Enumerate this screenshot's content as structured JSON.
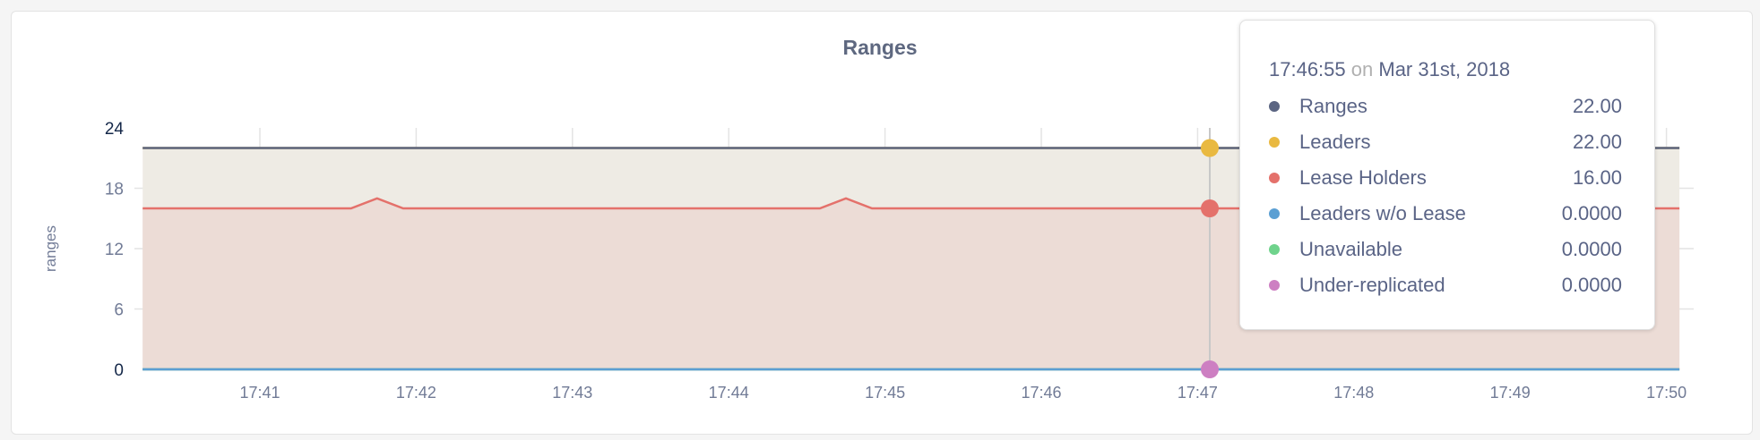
{
  "chart_data": {
    "type": "area",
    "title": "Ranges",
    "ylabel": "ranges",
    "xlabel": "",
    "ylim": [
      0,
      24
    ],
    "yticks": [
      "0",
      "6",
      "12",
      "18",
      "24"
    ],
    "xticks": [
      "17:41",
      "17:42",
      "17:43",
      "17:44",
      "17:45",
      "17:46",
      "17:47",
      "17:48",
      "17:49",
      "17:50"
    ],
    "grid": true,
    "legend": "none",
    "x": [
      "17:40:15",
      "17:40:25",
      "17:40:35",
      "17:40:45",
      "17:40:55",
      "17:41:05",
      "17:41:15",
      "17:41:25",
      "17:41:35",
      "17:41:45",
      "17:41:55",
      "17:42:05",
      "17:42:15",
      "17:42:25",
      "17:42:35",
      "17:42:45",
      "17:42:55",
      "17:43:05",
      "17:43:15",
      "17:43:25",
      "17:43:35",
      "17:43:45",
      "17:43:55",
      "17:44:05",
      "17:44:15",
      "17:44:25",
      "17:44:35",
      "17:44:45",
      "17:44:55",
      "17:45:05",
      "17:45:15",
      "17:45:25",
      "17:45:35",
      "17:45:45",
      "17:45:55",
      "17:46:05",
      "17:46:15",
      "17:46:25",
      "17:46:35",
      "17:46:45",
      "17:46:55",
      "17:47:05",
      "17:47:15",
      "17:47:25",
      "17:47:35",
      "17:47:45",
      "17:47:55",
      "17:48:05",
      "17:48:15",
      "17:48:25",
      "17:48:35",
      "17:48:45",
      "17:48:55",
      "17:49:05",
      "17:49:15",
      "17:49:25",
      "17:49:35",
      "17:49:45",
      "17:49:55",
      "17:50:05"
    ],
    "series": [
      {
        "name": "Ranges",
        "color": "#5b6582",
        "values": [
          22,
          22,
          22,
          22,
          22,
          22,
          22,
          22,
          22,
          22,
          22,
          22,
          22,
          22,
          22,
          22,
          22,
          22,
          22,
          22,
          22,
          22,
          22,
          22,
          22,
          22,
          22,
          22,
          22,
          22,
          22,
          22,
          22,
          22,
          22,
          22,
          22,
          22,
          22,
          22,
          22,
          22,
          22,
          22,
          22,
          22,
          22,
          22,
          22,
          22,
          22,
          22,
          22,
          22,
          22,
          22,
          22,
          22,
          22,
          22
        ]
      },
      {
        "name": "Leaders",
        "color": "#e9b941",
        "fill": "#eeebe4",
        "values": [
          22,
          22,
          22,
          22,
          22,
          22,
          22,
          22,
          22,
          22,
          22,
          22,
          22,
          22,
          22,
          22,
          22,
          22,
          22,
          22,
          22,
          22,
          22,
          22,
          22,
          22,
          22,
          22,
          22,
          22,
          22,
          22,
          22,
          22,
          22,
          22,
          22,
          22,
          22,
          22,
          22,
          22,
          22,
          22,
          22,
          22,
          22,
          22,
          22,
          22,
          22,
          22,
          22,
          22,
          22,
          22,
          22,
          22,
          22,
          22
        ]
      },
      {
        "name": "Lease Holders",
        "color": "#e4716b",
        "fill": "#ecdcd6",
        "values": [
          16,
          16,
          16,
          16,
          16,
          16,
          16,
          16,
          16,
          17,
          16,
          16,
          16,
          16,
          16,
          16,
          16,
          16,
          16,
          16,
          16,
          16,
          16,
          16,
          16,
          16,
          16,
          17,
          16,
          16,
          16,
          16,
          16,
          16,
          16,
          16,
          16,
          16,
          16,
          16,
          16,
          16,
          16,
          16,
          16,
          16,
          16,
          16,
          16,
          16,
          16,
          16,
          16,
          16,
          16,
          16,
          16,
          16,
          16,
          16
        ]
      },
      {
        "name": "Leaders w/o Lease",
        "color": "#5b9fd3",
        "values": [
          0,
          0,
          0,
          0,
          0,
          0,
          0,
          0,
          0,
          0,
          0,
          0,
          0,
          0,
          0,
          0,
          0,
          0,
          0,
          0,
          0,
          0,
          0,
          0,
          0,
          0,
          0,
          0,
          0,
          0,
          0,
          0,
          0,
          0,
          0,
          0,
          0,
          0,
          0,
          0,
          0,
          0,
          0,
          0,
          0,
          0,
          0,
          0,
          0,
          0,
          0,
          0,
          0,
          0,
          0,
          0,
          0,
          0,
          0,
          0
        ]
      },
      {
        "name": "Unavailable",
        "color": "#6fd38c",
        "values": [
          0,
          0,
          0,
          0,
          0,
          0,
          0,
          0,
          0,
          0,
          0,
          0,
          0,
          0,
          0,
          0,
          0,
          0,
          0,
          0,
          0,
          0,
          0,
          0,
          0,
          0,
          0,
          0,
          0,
          0,
          0,
          0,
          0,
          0,
          0,
          0,
          0,
          0,
          0,
          0,
          0,
          0,
          0,
          0,
          0,
          0,
          0,
          0,
          0,
          0,
          0,
          0,
          0,
          0,
          0,
          0,
          0,
          0,
          0,
          0
        ]
      },
      {
        "name": "Under-replicated",
        "color": "#cd7fc2",
        "values": [
          0,
          0,
          0,
          0,
          0,
          0,
          0,
          0,
          0,
          0,
          0,
          0,
          0,
          0,
          0,
          0,
          0,
          0,
          0,
          0,
          0,
          0,
          0,
          0,
          0,
          0,
          0,
          0,
          0,
          0,
          0,
          0,
          0,
          0,
          0,
          0,
          0,
          0,
          0,
          0,
          0,
          0,
          0,
          0,
          0,
          0,
          0,
          0,
          0,
          0,
          0,
          0,
          0,
          0,
          0,
          0,
          0,
          0,
          0,
          0
        ]
      }
    ]
  },
  "tooltip": {
    "time": "17:46:55",
    "on": "on",
    "date": "Mar 31st, 2018",
    "rows": [
      {
        "label": "Ranges",
        "value": "22.00",
        "color": "#5b6582"
      },
      {
        "label": "Leaders",
        "value": "22.00",
        "color": "#e9b941"
      },
      {
        "label": "Lease Holders",
        "value": "16.00",
        "color": "#e4716b"
      },
      {
        "label": "Leaders w/o Lease",
        "value": "0.0000",
        "color": "#5b9fd3"
      },
      {
        "label": "Unavailable",
        "value": "0.0000",
        "color": "#6fd38c"
      },
      {
        "label": "Under-replicated",
        "value": "0.0000",
        "color": "#cd7fc2"
      }
    ]
  }
}
